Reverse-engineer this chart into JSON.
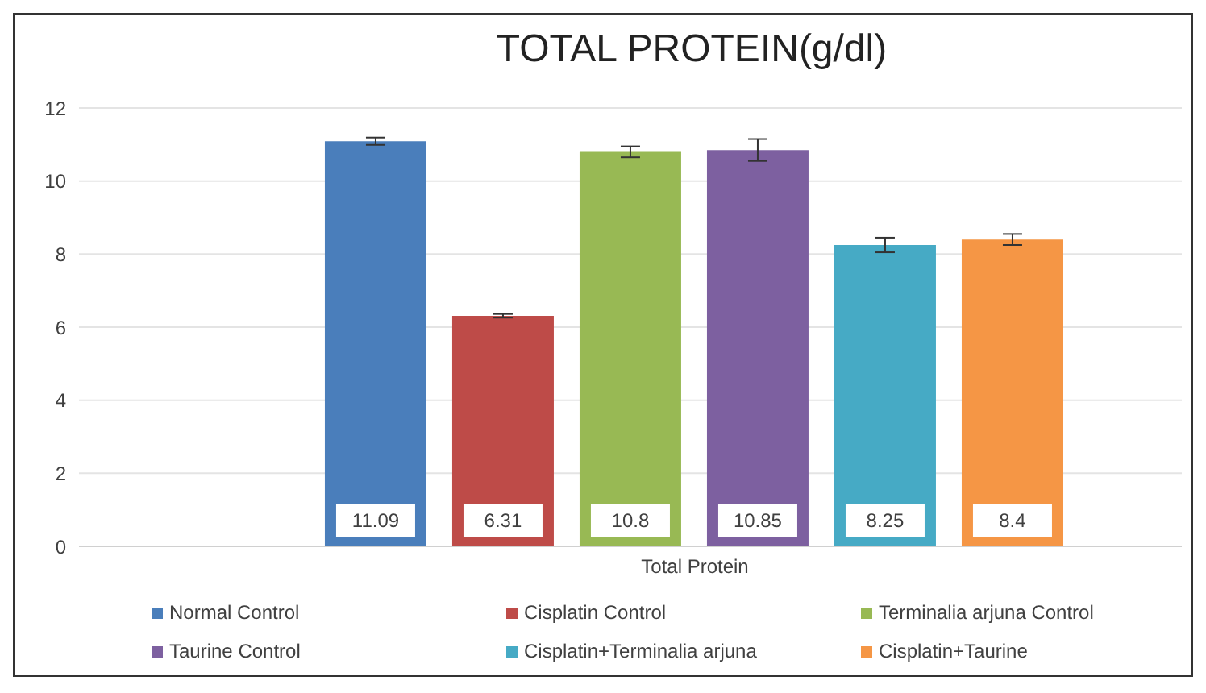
{
  "chart_data": {
    "type": "bar",
    "title": "TOTAL PROTEIN(g/dl)",
    "categories": [
      "Total Protein"
    ],
    "series": [
      {
        "name": "Normal Control",
        "color": "#4a7ebb",
        "values": [
          11.09
        ],
        "errors": [
          0.1
        ]
      },
      {
        "name": "Cisplatin Control",
        "color": "#be4b48",
        "values": [
          6.31
        ],
        "errors": [
          0.05
        ]
      },
      {
        "name": "Terminalia arjuna Control",
        "color": "#98b954",
        "values": [
          10.8
        ],
        "errors": [
          0.15
        ]
      },
      {
        "name": "Taurine Control",
        "color": "#7d60a0",
        "values": [
          10.85
        ],
        "errors": [
          0.3
        ]
      },
      {
        "name": "Cisplatin+Terminalia arjuna",
        "color": "#46aac5",
        "values": [
          8.25
        ],
        "errors": [
          0.2
        ]
      },
      {
        "name": "Cisplatin+Taurine",
        "color": "#f59645",
        "values": [
          8.4
        ],
        "errors": [
          0.15
        ]
      }
    ],
    "ylim": [
      0,
      12
    ],
    "yticks": [
      0,
      2,
      4,
      6,
      8,
      10,
      12
    ],
    "grid": "y",
    "legend": "bottom",
    "data_labels": true
  }
}
